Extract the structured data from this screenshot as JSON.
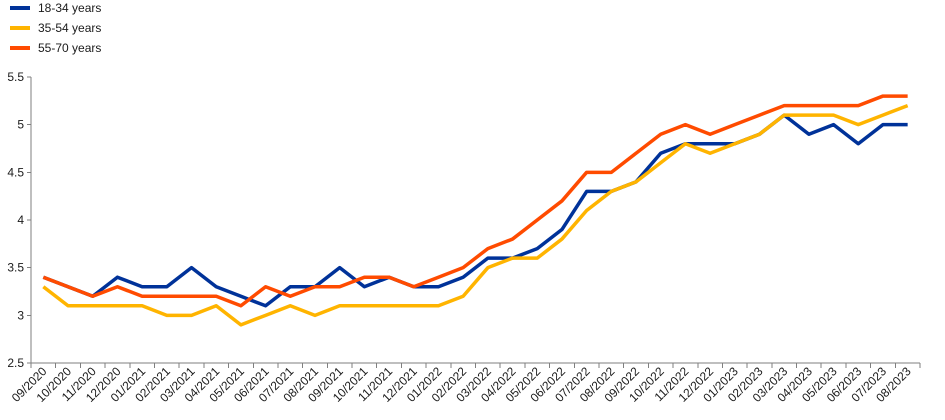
{
  "chart_data": {
    "type": "line",
    "title": "",
    "xlabel": "",
    "ylabel": "",
    "grid": false,
    "legend_position": "top-left",
    "ylim": [
      2.5,
      5.5
    ],
    "yticks": [
      "2.5",
      "3",
      "3.5",
      "4",
      "4.5",
      "5",
      "5.5"
    ],
    "categories": [
      "09/2020",
      "10/2020",
      "11/2020",
      "12/2020",
      "01/2021",
      "02/2021",
      "03/2021",
      "04/2021",
      "05/2021",
      "06/2021",
      "07/2021",
      "08/2021",
      "09/2021",
      "10/2021",
      "11/2021",
      "12/2021",
      "01/2022",
      "02/2022",
      "03/2022",
      "04/2022",
      "05/2022",
      "06/2022",
      "07/2022",
      "08/2022",
      "09/2022",
      "10/2022",
      "11/2022",
      "12/2022",
      "01/2023",
      "02/2023",
      "03/2023",
      "04/2023",
      "05/2023",
      "06/2023",
      "07/2023",
      "08/2023"
    ],
    "series": [
      {
        "name": "18-34 years",
        "color": "#003299",
        "values": [
          3.4,
          3.3,
          3.2,
          3.4,
          3.3,
          3.3,
          3.5,
          3.3,
          3.2,
          3.1,
          3.3,
          3.3,
          3.5,
          3.3,
          3.4,
          3.3,
          3.3,
          3.4,
          3.6,
          3.6,
          3.7,
          3.9,
          4.3,
          4.3,
          4.4,
          4.7,
          4.8,
          4.8,
          4.8,
          4.9,
          5.1,
          4.9,
          5.0,
          4.8,
          5.0,
          5.0
        ]
      },
      {
        "name": "35-54 years",
        "color": "#FFB400",
        "values": [
          3.3,
          3.1,
          3.1,
          3.1,
          3.1,
          3.0,
          3.0,
          3.1,
          2.9,
          3.0,
          3.1,
          3.0,
          3.1,
          3.1,
          3.1,
          3.1,
          3.1,
          3.2,
          3.5,
          3.6,
          3.6,
          3.8,
          4.1,
          4.3,
          4.4,
          4.6,
          4.8,
          4.7,
          4.8,
          4.9,
          5.1,
          5.1,
          5.1,
          5.0,
          5.1,
          5.2
        ]
      },
      {
        "name": "55-70 years",
        "color": "#FF4B00",
        "values": [
          3.4,
          3.3,
          3.2,
          3.3,
          3.2,
          3.2,
          3.2,
          3.2,
          3.1,
          3.3,
          3.2,
          3.3,
          3.3,
          3.4,
          3.4,
          3.3,
          3.4,
          3.5,
          3.7,
          3.8,
          4.0,
          4.2,
          4.5,
          4.5,
          4.7,
          4.9,
          5.0,
          4.9,
          5.0,
          5.1,
          5.2,
          5.2,
          5.2,
          5.2,
          5.3,
          5.3
        ]
      }
    ]
  }
}
